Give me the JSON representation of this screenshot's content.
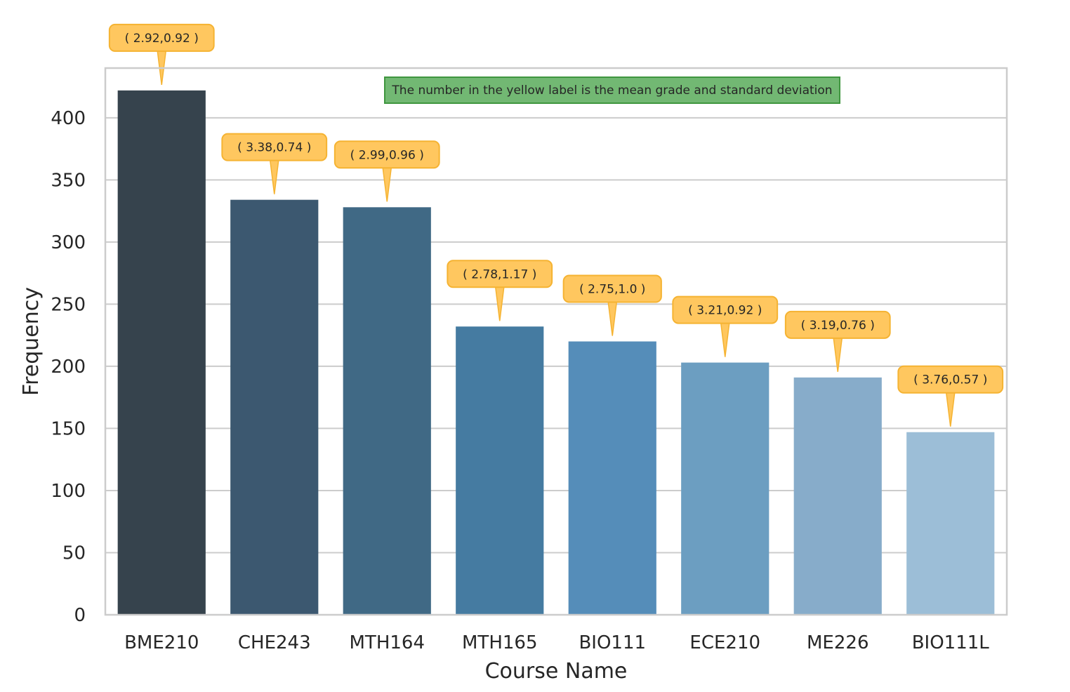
{
  "chart_data": {
    "type": "bar",
    "title": "",
    "xlabel": "Course Name",
    "ylabel": "Frequency",
    "categories": [
      "BME210",
      "CHE243",
      "MTH164",
      "MTH165",
      "BIO111",
      "ECE210",
      "ME226",
      "BIO111L"
    ],
    "values": [
      422,
      334,
      328,
      232,
      220,
      203,
      191,
      147
    ],
    "ylim": [
      0,
      440
    ],
    "yticks": [
      0,
      50,
      100,
      150,
      200,
      250,
      300,
      350,
      400
    ],
    "grid": true,
    "bar_colors": [
      "#36434d",
      "#3c5870",
      "#406985",
      "#457ba1",
      "#558db9",
      "#6c9ec1",
      "#87acca",
      "#9cbed7"
    ],
    "annotations": [
      "( 2.92,0.92 )",
      "( 3.38,0.74 )",
      "( 2.99,0.96 )",
      "( 2.78,1.17 )",
      "( 2.75,1.0 )",
      "( 3.21,0.92 )",
      "( 3.19,0.76 )",
      "( 3.76,0.57 )"
    ],
    "annotation_color": "#ffc75f",
    "note": "The number in the yellow label is the mean grade and standard deviation",
    "note_color": "#6ab46c"
  }
}
